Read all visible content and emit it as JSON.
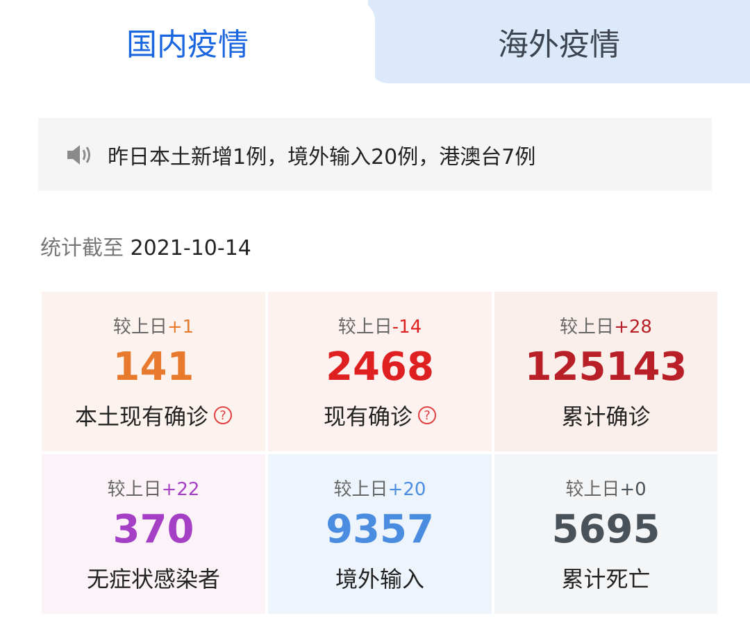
{
  "tabs": [
    {
      "label": "国内疫情",
      "active": true
    },
    {
      "label": "海外疫情",
      "active": false
    }
  ],
  "notice": {
    "icon": "speaker-icon",
    "text": "昨日本土新增1例，境外输入20例，港澳台7例"
  },
  "stats_date": {
    "label": "统计截至",
    "value": "2021-10-14"
  },
  "compare_prefix": "较上日",
  "cards": [
    {
      "change": "+1",
      "value": "141",
      "label": "本土现有确诊",
      "help": true,
      "color": "#e87a2e",
      "bg": "#fdf3ee"
    },
    {
      "change": "-14",
      "value": "2468",
      "label": "现有确诊",
      "help": true,
      "color": "#df2020",
      "bg": "#fdf2f0"
    },
    {
      "change": "+28",
      "value": "125143",
      "label": "累计确诊",
      "help": false,
      "color": "#b81f26",
      "bg": "#fbefec"
    },
    {
      "change": "+22",
      "value": "370",
      "label": "无症状感染者",
      "help": false,
      "color": "#a43fc6",
      "bg": "#fcf3f8"
    },
    {
      "change": "+20",
      "value": "9357",
      "label": "境外输入",
      "help": false,
      "color": "#4a8de0",
      "bg": "#eef4fc"
    },
    {
      "change": "+0",
      "value": "5695",
      "label": "累计死亡",
      "help": false,
      "color": "#4a5259",
      "bg": "#f3f5f7"
    }
  ]
}
